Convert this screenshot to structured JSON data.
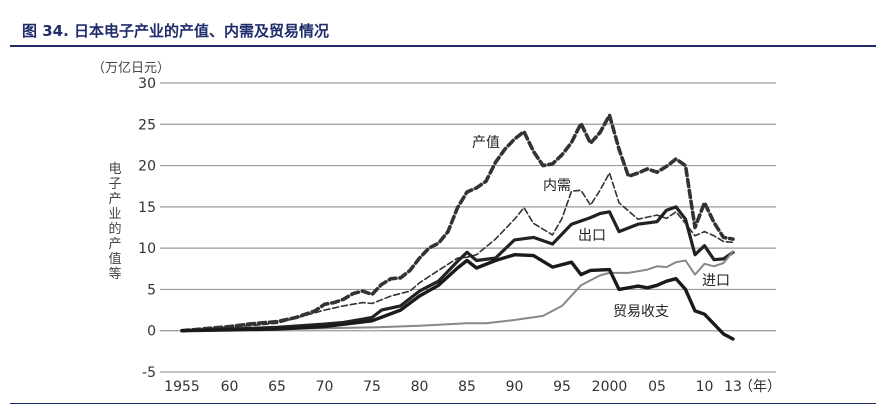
{
  "figure": {
    "title": "图 34. 日本电子产业的产值、内需及贸易情况"
  },
  "chart_data": {
    "type": "line",
    "unit_label": "（万亿日元）",
    "ylabel_chars": [
      "电",
      "子",
      "产",
      "业",
      "的",
      "产",
      "值",
      "等"
    ],
    "x_unit": "（年）",
    "ylim": [
      -5,
      30
    ],
    "yticks": [
      -5,
      0,
      5,
      10,
      15,
      20,
      25,
      30
    ],
    "xlim": [
      1955,
      2013
    ],
    "xticks": [
      1955,
      1960,
      1965,
      1970,
      1975,
      1980,
      1985,
      1990,
      1995,
      2000,
      2005,
      2010,
      2013
    ],
    "xtick_labels": [
      "1955",
      "60",
      "65",
      "70",
      "75",
      "80",
      "85",
      "90",
      "95",
      "2000",
      "05",
      "10",
      "13"
    ],
    "grid": true,
    "series": [
      {
        "name": "产值",
        "style": "thick-dashed",
        "color": "#333333",
        "x": [
          1955,
          1958,
          1960,
          1962,
          1965,
          1967,
          1969,
          1970,
          1971,
          1972,
          1973,
          1974,
          1975,
          1976,
          1977,
          1978,
          1979,
          1980,
          1981,
          1982,
          1983,
          1984,
          1985,
          1986,
          1987,
          1988,
          1989,
          1990,
          1991,
          1992,
          1993,
          1994,
          1995,
          1996,
          1997,
          1998,
          1999,
          2000,
          2001,
          2002,
          2003,
          2004,
          2005,
          2006,
          2007,
          2008,
          2009,
          2010,
          2011,
          2012,
          2013
        ],
        "values": [
          0,
          0.3,
          0.5,
          0.8,
          1.1,
          1.6,
          2.4,
          3.2,
          3.4,
          3.8,
          4.5,
          4.8,
          4.4,
          5.6,
          6.3,
          6.4,
          7.3,
          8.8,
          10.0,
          10.6,
          12.0,
          14.9,
          16.8,
          17.3,
          18.1,
          20.4,
          22.0,
          23.2,
          24.1,
          21.7,
          20.0,
          20.2,
          21.3,
          22.8,
          25.1,
          22.7,
          24.0,
          26.1,
          22.0,
          18.7,
          19.1,
          19.6,
          19.2,
          19.9,
          20.8,
          20.0,
          12.5,
          15.5,
          13.1,
          11.3,
          11.1
        ]
      },
      {
        "name": "内需",
        "style": "thin-dashed",
        "color": "#333333",
        "x": [
          1955,
          1960,
          1965,
          1970,
          1972,
          1974,
          1975,
          1977,
          1979,
          1980,
          1982,
          1984,
          1985,
          1986,
          1988,
          1990,
          1991,
          1992,
          1994,
          1995,
          1996,
          1997,
          1998,
          1999,
          2000,
          2001,
          2003,
          2005,
          2006,
          2007,
          2008,
          2009,
          2010,
          2011,
          2012,
          2013
        ],
        "values": [
          0,
          0.4,
          0.9,
          2.5,
          3.0,
          3.4,
          3.3,
          4.2,
          4.8,
          5.8,
          7.3,
          8.8,
          8.9,
          9.2,
          11.1,
          13.5,
          14.9,
          13.0,
          11.6,
          13.6,
          16.9,
          17.0,
          15.2,
          17.0,
          19.1,
          15.5,
          13.5,
          14.0,
          13.6,
          14.4,
          13.0,
          11.5,
          12.0,
          11.5,
          10.8,
          10.7
        ]
      },
      {
        "name": "出口",
        "style": "thick-solid",
        "color": "#222222",
        "x": [
          1955,
          1960,
          1965,
          1970,
          1972,
          1974,
          1975,
          1976,
          1978,
          1980,
          1982,
          1984,
          1985,
          1986,
          1988,
          1990,
          1992,
          1994,
          1996,
          1998,
          1999,
          2000,
          2001,
          2003,
          2005,
          2006,
          2007,
          2008,
          2009,
          2010,
          2011,
          2012,
          2013
        ],
        "values": [
          0,
          0.2,
          0.4,
          0.8,
          1.0,
          1.4,
          1.6,
          2.5,
          3.0,
          4.8,
          6.0,
          8.4,
          9.5,
          8.5,
          8.8,
          11.0,
          11.3,
          10.5,
          12.9,
          13.7,
          14.2,
          14.4,
          12.0,
          12.9,
          13.2,
          14.6,
          15.0,
          13.5,
          9.2,
          10.3,
          8.6,
          8.7,
          9.5
        ]
      },
      {
        "name": "进口",
        "style": "solid-gray",
        "color": "#888888",
        "x": [
          1955,
          1960,
          1965,
          1970,
          1975,
          1980,
          1985,
          1987,
          1990,
          1993,
          1995,
          1997,
          1999,
          2000,
          2002,
          2004,
          2005,
          2006,
          2007,
          2008,
          2009,
          2010,
          2011,
          2012,
          2013
        ],
        "values": [
          0,
          0.1,
          0.2,
          0.3,
          0.4,
          0.6,
          0.9,
          0.9,
          1.3,
          1.8,
          3.0,
          5.5,
          6.7,
          7.0,
          7.0,
          7.4,
          7.8,
          7.7,
          8.3,
          8.5,
          6.8,
          8.1,
          7.8,
          8.2,
          9.6
        ]
      },
      {
        "name": "贸易收支",
        "style": "thick-solid-dark",
        "color": "#1a1a1a",
        "x": [
          1955,
          1960,
          1965,
          1970,
          1975,
          1978,
          1980,
          1982,
          1984,
          1985,
          1986,
          1988,
          1990,
          1992,
          1994,
          1996,
          1997,
          1998,
          2000,
          2001,
          2003,
          2004,
          2005,
          2006,
          2007,
          2008,
          2009,
          2010,
          2011,
          2012,
          2013
        ],
        "values": [
          0,
          0.1,
          0.2,
          0.5,
          1.2,
          2.5,
          4.2,
          5.5,
          7.6,
          8.5,
          7.6,
          8.5,
          9.2,
          9.1,
          7.7,
          8.3,
          6.8,
          7.3,
          7.4,
          5.0,
          5.4,
          5.2,
          5.5,
          6.0,
          6.3,
          5.0,
          2.4,
          2.0,
          0.8,
          -0.4,
          -1.0
        ]
      }
    ]
  }
}
